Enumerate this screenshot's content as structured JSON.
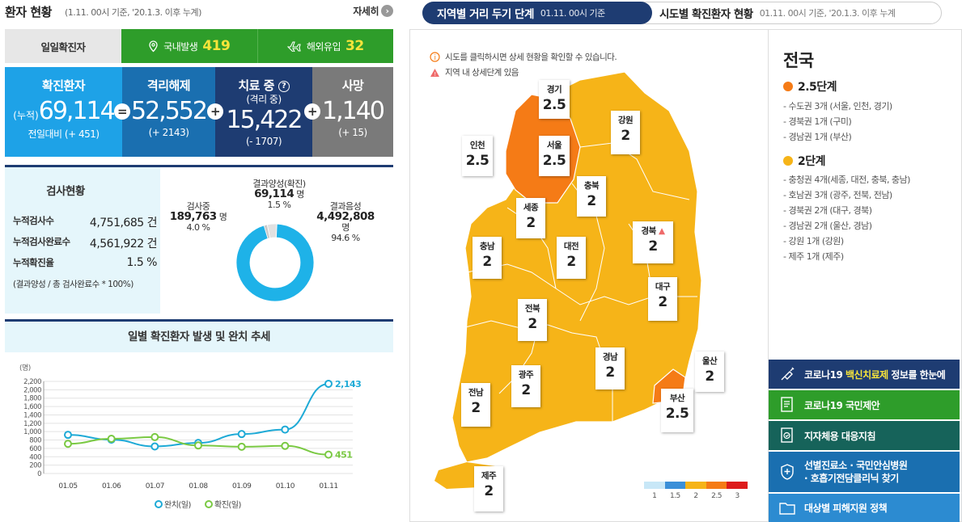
{
  "left_header": {
    "title": "환자 현황",
    "subtitle": "(1.11. 00시 기준, '20.1.3. 이후 누계)",
    "more_label": "자세히",
    "more_icon": "arrow-right-icon"
  },
  "daily": {
    "label": "일일확진자",
    "domestic_label": "국내발생",
    "domestic_value": "419",
    "overseas_label": "해외유입",
    "overseas_value": "32"
  },
  "stats": {
    "confirmed": {
      "title": "확진환자",
      "prefix": "(누적)",
      "value": "69,114",
      "sub": "전일대비 (+ 451)",
      "color": "#1ea2e7"
    },
    "released": {
      "title": "격리해제",
      "value": "52,552",
      "sub": "(+ 2143)",
      "color": "#1a6fb0"
    },
    "treatment": {
      "title": "치료 중",
      "subtitle": "(격리 중)",
      "value": "15,422",
      "sub": "(- 1707)",
      "color": "#1e3c72"
    },
    "deaths": {
      "title": "사망",
      "value": "1,140",
      "sub": "(+ 15)",
      "color": "#7a7a7a"
    },
    "ops": [
      "=",
      "+",
      "+"
    ]
  },
  "test": {
    "title": "검사현황",
    "rows": [
      {
        "label": "누적검사수",
        "value": "4,751,685 건"
      },
      {
        "label": "누적검사완료수",
        "value": "4,561,922 건"
      },
      {
        "label": "누적확진율",
        "value": "1.5 %"
      }
    ],
    "note": "(결과양성 / 총 검사완료수 * 100%)",
    "donut": {
      "positive_label": "결과양성(확진)",
      "positive_value": "69,114",
      "positive_unit": "명",
      "positive_pct": "1.5 %",
      "testing_label": "검사중",
      "testing_value": "189,763",
      "testing_unit": "명",
      "testing_pct": "4.0 %",
      "negative_label": "결과음성",
      "negative_value": "4,492,808",
      "negative_unit": "명",
      "negative_pct": "94.6 %",
      "fractions": [
        0.015,
        0.04,
        0.946
      ],
      "colors": [
        "#c9c9c9",
        "#e1e1e1",
        "#1eb2e8"
      ]
    }
  },
  "chart_data": {
    "type": "line",
    "title": "일별 확진환자 발생 및 완치 추세",
    "ylabel": "(명)",
    "x": [
      "01.05",
      "01.06",
      "01.07",
      "01.08",
      "01.09",
      "01.10",
      "01.11"
    ],
    "ylim": [
      0,
      2200
    ],
    "yticks": [
      0,
      200,
      400,
      600,
      800,
      1000,
      1200,
      1400,
      1600,
      1800,
      2000,
      2200
    ],
    "series": [
      {
        "name": "완치(일)",
        "color": "#1eaad6",
        "values": [
          923,
          809,
          647,
          731,
          942,
          1050,
          2143
        ],
        "end_label": "2,143"
      },
      {
        "name": "확진(일)",
        "color": "#7ac943",
        "values": [
          710,
          830,
          870,
          670,
          640,
          660,
          451
        ],
        "end_label": "451"
      }
    ],
    "grid": true,
    "legend": "bottom"
  },
  "map": {
    "tab_active": "지역별 거리 두기 단계",
    "tab_active_date": "01.11. 00시 기준",
    "tab_other": "시도별 확진환자 현황",
    "tab_other_date": "01.11. 00시 기준, '20.1.3. 이후 누계",
    "hint1": "시도를 클릭하시면 상세 현황을 확인할 수 있습니다.",
    "hint2": "지역 내 상세단계 있음",
    "regions": [
      {
        "name": "경기",
        "level": "2.5"
      },
      {
        "name": "강원",
        "level": "2"
      },
      {
        "name": "인천",
        "level": "2.5"
      },
      {
        "name": "서울",
        "level": "2.5"
      },
      {
        "name": "충북",
        "level": "2"
      },
      {
        "name": "세종",
        "level": "2"
      },
      {
        "name": "경북",
        "level": "2"
      },
      {
        "name": "충남",
        "level": "2"
      },
      {
        "name": "대전",
        "level": "2"
      },
      {
        "name": "대구",
        "level": "2"
      },
      {
        "name": "전북",
        "level": "2"
      },
      {
        "name": "울산",
        "level": "2"
      },
      {
        "name": "경남",
        "level": "2"
      },
      {
        "name": "광주",
        "level": "2"
      },
      {
        "name": "부산",
        "level": "2.5"
      },
      {
        "name": "전남",
        "level": "2"
      },
      {
        "name": "제주",
        "level": "2"
      }
    ],
    "legend": {
      "labels": [
        "1",
        "1.5",
        "2",
        "2.5",
        "3"
      ],
      "colors": [
        "#c8e7f7",
        "#3b8fd8",
        "#f6b418",
        "#f57b16",
        "#dd1b1b"
      ]
    }
  },
  "side": {
    "title": "전국",
    "level1": {
      "label": "2.5단계",
      "color": "#f57b16",
      "items": [
        "- 수도권 3개 (서울, 인천, 경기)",
        "- 경북권 1개 (구미)",
        "- 경남권 1개 (부산)"
      ]
    },
    "level2": {
      "label": "2단계",
      "color": "#f6b418",
      "items": [
        "- 충청권 4개(세종, 대전, 충북, 충남)",
        "- 호남권 3개 (광주, 전북, 전남)",
        "- 경북권 2개 (대구, 경북)",
        "- 경남권 2개 (울산, 경남)",
        "- 강원 1개 (강원)",
        "- 제주 1개 (제주)"
      ]
    },
    "buttons": [
      {
        "pre": "코로나19 ",
        "hl": "백신치료제",
        "post": " 정보를 한눈에",
        "color": "#1e3c72",
        "icon": "syringe-icon"
      },
      {
        "label": "코로나19 국민제안",
        "color": "#2e9d2a",
        "icon": "document-icon"
      },
      {
        "label": "지자체용 대응지침",
        "color": "#16635a",
        "icon": "checklist-icon"
      },
      {
        "label": "선별진료소 · 국민안심병원\n· 호흡기전담클리닉 찾기",
        "color": "#1a6fb0",
        "icon": "hospital-icon"
      },
      {
        "label": "대상별 피해지원 정책",
        "color": "#2c8bd1",
        "icon": "folder-icon"
      }
    ]
  }
}
